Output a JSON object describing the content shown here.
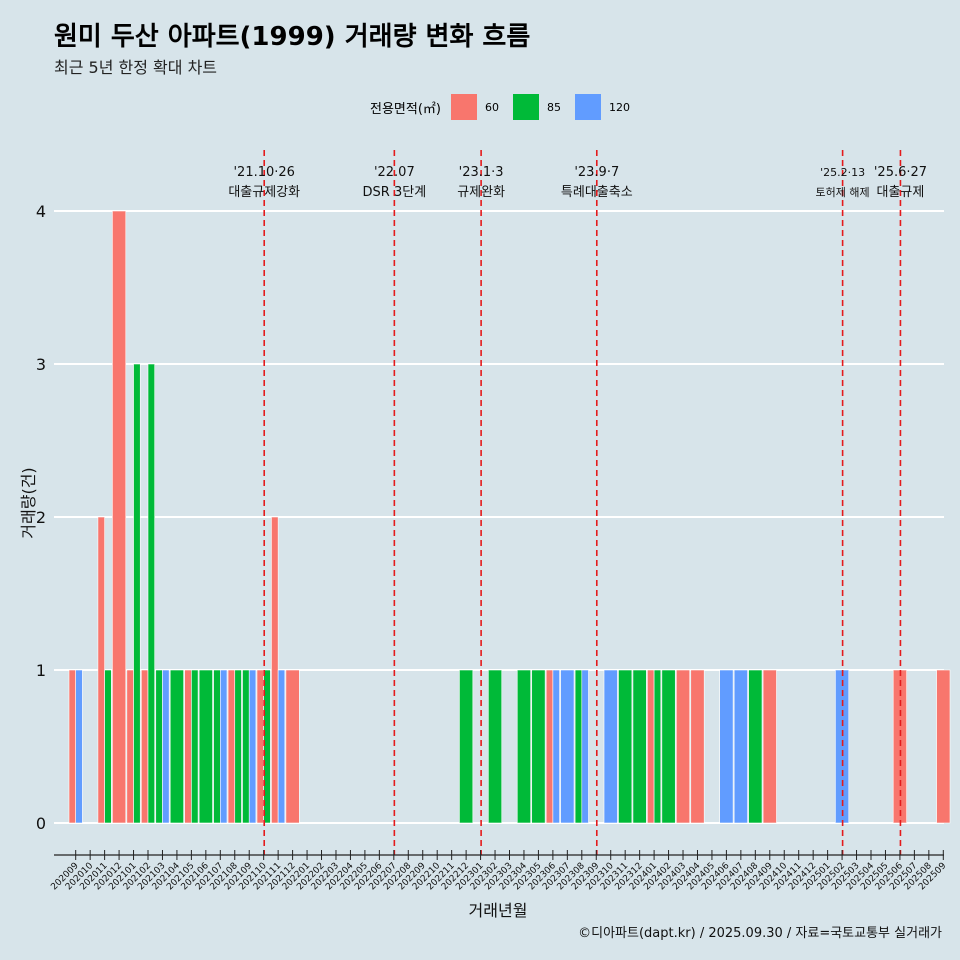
{
  "header": {
    "title": "원미 두산 아파트(1999) 거래량 변화 흐름",
    "subtitle": "최근 5년 한정 확대 차트"
  },
  "legend": {
    "title": "전용면적(㎡)",
    "items": [
      {
        "label": "60",
        "color": "#f8766d"
      },
      {
        "label": "85",
        "color": "#00ba38"
      },
      {
        "label": "120",
        "color": "#619cff"
      }
    ]
  },
  "caption": "©디아파트(dapt.kr) / 2025.09.30 / 자료=국토교통부 실거래가",
  "chart_data": {
    "type": "bar",
    "title": "원미 두산 아파트(1999) 거래량 변화 흐름",
    "xlabel": "거래년월",
    "ylabel": "거래량(건)",
    "ylim": [
      0,
      4
    ],
    "y_ticks": [
      0,
      1,
      2,
      3,
      4
    ],
    "categories": [
      "202009",
      "202010",
      "202011",
      "202012",
      "202101",
      "202102",
      "202103",
      "202104",
      "202105",
      "202106",
      "202107",
      "202108",
      "202109",
      "202110",
      "202111",
      "202112",
      "202201",
      "202202",
      "202203",
      "202204",
      "202205",
      "202206",
      "202207",
      "202208",
      "202209",
      "202210",
      "202211",
      "202212",
      "202301",
      "202302",
      "202303",
      "202304",
      "202305",
      "202306",
      "202307",
      "202308",
      "202309",
      "202310",
      "202311",
      "202312",
      "202401",
      "202402",
      "202403",
      "202404",
      "202405",
      "202406",
      "202407",
      "202408",
      "202409",
      "202410",
      "202411",
      "202412",
      "202501",
      "202502",
      "202503",
      "202504",
      "202505",
      "202506",
      "202507",
      "202508",
      "202509"
    ],
    "series": [
      {
        "name": "60",
        "color": "#f8766d",
        "values": [
          1,
          0,
          2,
          4,
          1,
          1,
          0,
          0,
          1,
          0,
          0,
          1,
          0,
          1,
          2,
          1,
          0,
          0,
          0,
          0,
          0,
          0,
          0,
          0,
          0,
          0,
          0,
          0,
          0,
          0,
          0,
          0,
          0,
          1,
          0,
          0,
          0,
          0,
          0,
          0,
          1,
          0,
          1,
          1,
          0,
          0,
          0,
          0,
          1,
          0,
          0,
          0,
          0,
          0,
          0,
          0,
          0,
          1,
          0,
          0,
          1
        ]
      },
      {
        "name": "85",
        "color": "#00ba38",
        "values": [
          0,
          0,
          1,
          0,
          3,
          3,
          1,
          1,
          1,
          1,
          1,
          1,
          1,
          1,
          0,
          0,
          0,
          0,
          0,
          0,
          0,
          0,
          0,
          0,
          0,
          0,
          0,
          1,
          0,
          1,
          0,
          1,
          1,
          0,
          0,
          1,
          0,
          0,
          1,
          1,
          1,
          1,
          0,
          0,
          0,
          0,
          0,
          1,
          0,
          0,
          0,
          0,
          0,
          0,
          0,
          0,
          0,
          0,
          0,
          0,
          0
        ]
      },
      {
        "name": "120",
        "color": "#619cff",
        "values": [
          1,
          0,
          0,
          0,
          0,
          0,
          1,
          0,
          0,
          0,
          1,
          0,
          1,
          0,
          1,
          0,
          0,
          0,
          0,
          0,
          0,
          0,
          0,
          0,
          0,
          0,
          0,
          0,
          0,
          0,
          0,
          0,
          0,
          1,
          1,
          1,
          0,
          1,
          0,
          0,
          0,
          0,
          0,
          0,
          0,
          1,
          1,
          0,
          0,
          0,
          0,
          0,
          0,
          1,
          0,
          0,
          0,
          0,
          0,
          0,
          0
        ]
      }
    ],
    "annotations": [
      {
        "date": "'21.10·26",
        "label": "대출규제강화",
        "at": 13.5
      },
      {
        "date": "'22.07",
        "label": "DSR 3단계",
        "at": 22.5
      },
      {
        "date": "'23.1·3",
        "label": "규제완화",
        "at": 28.5
      },
      {
        "date": "'23.9·7",
        "label": "특례대출축소",
        "at": 36.5
      },
      {
        "date": "'25.2·13",
        "label": "토허제 해제",
        "at": 53.5
      },
      {
        "date": "'25.6·27",
        "label": "대출규제",
        "at": 57.5
      }
    ]
  }
}
